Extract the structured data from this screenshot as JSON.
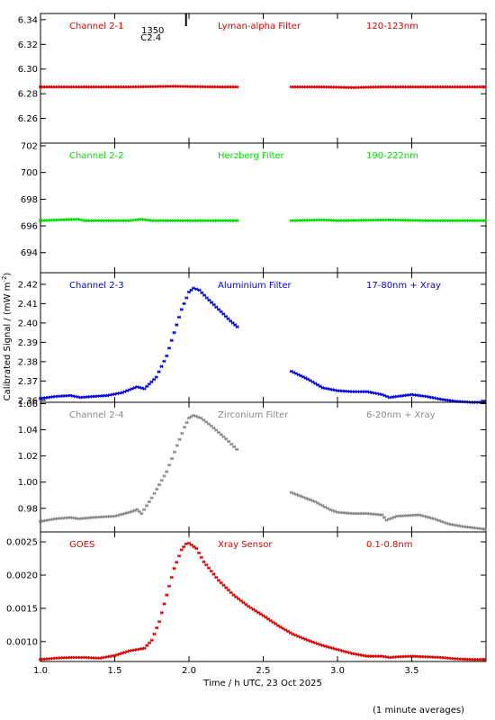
{
  "figure": {
    "ylabel": "Calibrated Signal / (mW m",
    "ylabel_sup": "-2",
    "ylabel_close": ")",
    "xlabel": "Time / h UTC, 23 Oct 2025",
    "footnote": "(1 minute averages)",
    "event_marker": {
      "time": 1.98,
      "label_top": "1350",
      "label_bottom": "C2.4"
    }
  },
  "chart_data": [
    {
      "type": "scatter",
      "channel": "Channel 2-1",
      "filter": "Lyman-alpha Filter",
      "band": "120-123nm",
      "color": "#dd0000",
      "xlim": [
        1.0,
        4.0
      ],
      "ylim": [
        6.24,
        6.345
      ],
      "xticks": [
        1.0,
        1.5,
        2.0,
        2.5,
        3.0,
        3.5
      ],
      "yticks": [
        6.26,
        6.28,
        6.3,
        6.32,
        6.34
      ],
      "ytick_labels": [
        "6.26",
        "6.28",
        "6.30",
        "6.32",
        "6.34"
      ],
      "gap": [
        2.35,
        2.68
      ],
      "x": [
        1.0,
        1.3,
        1.6,
        1.9,
        2.0,
        2.2,
        2.34,
        2.69,
        2.9,
        3.1,
        3.3,
        3.6,
        4.0
      ],
      "y": [
        6.2855,
        6.2855,
        6.2855,
        6.286,
        6.2858,
        6.2855,
        6.2855,
        6.2855,
        6.2855,
        6.285,
        6.2855,
        6.2855,
        6.2855
      ]
    },
    {
      "type": "scatter",
      "channel": "Channel 2-2",
      "filter": "Herzberg Filter",
      "band": "190-222nm",
      "color": "#00dd00",
      "xlim": [
        1.0,
        4.0
      ],
      "ylim": [
        692.5,
        702.2
      ],
      "xticks": [
        1.0,
        1.5,
        2.0,
        2.5,
        3.0,
        3.5
      ],
      "yticks": [
        694,
        696,
        698,
        700,
        702
      ],
      "ytick_labels": [
        "694",
        "696",
        "698",
        "700",
        "702"
      ],
      "gap": [
        2.35,
        2.68
      ],
      "x": [
        1.0,
        1.25,
        1.3,
        1.6,
        1.68,
        1.75,
        2.0,
        2.34,
        2.69,
        2.9,
        3.0,
        3.35,
        3.6,
        4.0
      ],
      "y": [
        696.4,
        696.5,
        696.4,
        696.4,
        696.5,
        696.4,
        696.4,
        696.4,
        696.4,
        696.45,
        696.4,
        696.45,
        696.4,
        696.4
      ]
    },
    {
      "type": "scatter",
      "channel": "Channel 2-3",
      "filter": "Aluminium Filter",
      "band": "17-80nm + Xray",
      "color": "#0000dd",
      "xlim": [
        1.0,
        4.0
      ],
      "ylim": [
        2.359,
        2.426
      ],
      "xticks": [
        1.0,
        1.5,
        2.0,
        2.5,
        3.0,
        3.5
      ],
      "yticks": [
        2.36,
        2.37,
        2.38,
        2.39,
        2.4,
        2.41,
        2.42
      ],
      "ytick_labels": [
        "2.36",
        "2.37",
        "2.38",
        "2.39",
        "2.40",
        "2.41",
        "2.42"
      ],
      "gap": [
        2.35,
        2.68
      ],
      "x": [
        1.0,
        1.1,
        1.2,
        1.27,
        1.35,
        1.45,
        1.55,
        1.65,
        1.7,
        1.78,
        1.85,
        1.9,
        1.95,
        2.0,
        2.03,
        2.07,
        2.12,
        2.2,
        2.28,
        2.34,
        2.69,
        2.8,
        2.9,
        3.0,
        3.1,
        3.2,
        3.3,
        3.35,
        3.5,
        3.6,
        3.7,
        3.8,
        3.9,
        4.0
      ],
      "y": [
        2.361,
        2.362,
        2.3625,
        2.3615,
        2.362,
        2.3625,
        2.364,
        2.367,
        2.366,
        2.372,
        2.383,
        2.395,
        2.407,
        2.416,
        2.418,
        2.417,
        2.413,
        2.407,
        2.401,
        2.397,
        2.375,
        2.371,
        2.3665,
        2.365,
        2.3645,
        2.3645,
        2.363,
        2.3615,
        2.363,
        2.362,
        2.3605,
        2.3595,
        2.359,
        2.359
      ]
    },
    {
      "type": "scatter",
      "channel": "Channel 2-4",
      "filter": "Zirconium Filter",
      "band": "6-20nm + Xray",
      "color": "#888888",
      "xlim": [
        1.0,
        4.0
      ],
      "ylim": [
        0.962,
        1.061
      ],
      "xticks": [
        1.0,
        1.5,
        2.0,
        2.5,
        3.0,
        3.5
      ],
      "yticks": [
        0.98,
        1.0,
        1.02,
        1.04,
        1.06
      ],
      "ytick_labels": [
        "0.98",
        "1.00",
        "1.02",
        "1.04",
        "1.06"
      ],
      "gap": [
        2.35,
        2.68
      ],
      "x": [
        1.0,
        1.1,
        1.2,
        1.26,
        1.35,
        1.5,
        1.6,
        1.65,
        1.68,
        1.75,
        1.85,
        1.92,
        1.97,
        2.0,
        2.03,
        2.08,
        2.15,
        2.25,
        2.34,
        2.69,
        2.85,
        2.95,
        3.0,
        3.1,
        3.2,
        3.3,
        3.33,
        3.4,
        3.55,
        3.65,
        3.75,
        3.85,
        4.0
      ],
      "y": [
        0.97,
        0.972,
        0.973,
        0.972,
        0.973,
        0.974,
        0.977,
        0.979,
        0.976,
        0.988,
        1.008,
        1.028,
        1.042,
        1.049,
        1.051,
        1.049,
        1.043,
        1.033,
        1.023,
        0.992,
        0.985,
        0.979,
        0.977,
        0.976,
        0.976,
        0.975,
        0.971,
        0.974,
        0.975,
        0.972,
        0.968,
        0.966,
        0.964
      ]
    },
    {
      "type": "scatter",
      "channel": "GOES",
      "filter": "Xray Sensor",
      "band": "0.1-0.8nm",
      "color": "#dd0000",
      "xlim": [
        1.0,
        4.0
      ],
      "ylim": [
        0.0007,
        0.00265
      ],
      "xticks": [
        1.0,
        1.5,
        2.0,
        2.5,
        3.0,
        3.5
      ],
      "yticks": [
        0.001,
        0.0015,
        0.002,
        0.0025
      ],
      "ytick_labels": [
        "0.0010",
        "0.0015",
        "0.0020",
        "0.0025"
      ],
      "xtick_labels": [
        "1.0",
        "1.5",
        "2.0",
        "2.5",
        "3.0",
        "3.5"
      ],
      "x": [
        1.0,
        1.1,
        1.2,
        1.3,
        1.4,
        1.5,
        1.6,
        1.7,
        1.75,
        1.8,
        1.85,
        1.9,
        1.95,
        1.98,
        2.0,
        2.05,
        2.1,
        2.2,
        2.3,
        2.4,
        2.5,
        2.6,
        2.7,
        2.8,
        2.9,
        3.0,
        3.1,
        3.2,
        3.3,
        3.35,
        3.4,
        3.5,
        3.6,
        3.7,
        3.8,
        3.9,
        4.0
      ],
      "y": [
        0.00073,
        0.00075,
        0.00076,
        0.00076,
        0.00075,
        0.00079,
        0.00086,
        0.0009,
        0.00102,
        0.0013,
        0.0017,
        0.0021,
        0.00238,
        0.00247,
        0.00248,
        0.0024,
        0.0022,
        0.00192,
        0.0017,
        0.00153,
        0.00139,
        0.00124,
        0.00111,
        0.00102,
        0.00094,
        0.00088,
        0.00082,
        0.00078,
        0.00078,
        0.00076,
        0.00077,
        0.00078,
        0.00077,
        0.00076,
        0.00074,
        0.00073,
        0.00073
      ]
    }
  ]
}
